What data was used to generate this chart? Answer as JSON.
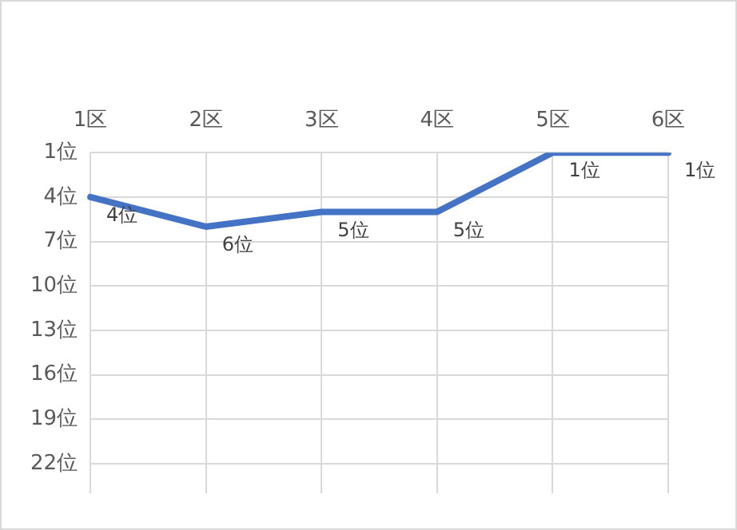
{
  "chart_data": {
    "type": "line",
    "categories": [
      "1区",
      "2区",
      "3区",
      "4区",
      "5区",
      "6区"
    ],
    "series": [
      {
        "color": "#4472c4",
        "values": [
          4,
          6,
          5,
          5,
          1,
          1
        ],
        "value_labels": [
          "4位",
          "6位",
          "5位",
          "5位",
          "1位",
          "1位"
        ]
      }
    ],
    "ylim": [
      24,
      1
    ],
    "yticks": [
      {
        "value": 1,
        "label": "1位"
      },
      {
        "value": 4,
        "label": "4位"
      },
      {
        "value": 7,
        "label": "7位"
      },
      {
        "value": 10,
        "label": "10位"
      },
      {
        "value": 13,
        "label": "13位"
      },
      {
        "value": 16,
        "label": "16位"
      },
      {
        "value": 19,
        "label": "19位"
      },
      {
        "value": 22,
        "label": "22位"
      }
    ],
    "grid": true,
    "legend": false,
    "marker": "none",
    "line_style": "solid"
  }
}
